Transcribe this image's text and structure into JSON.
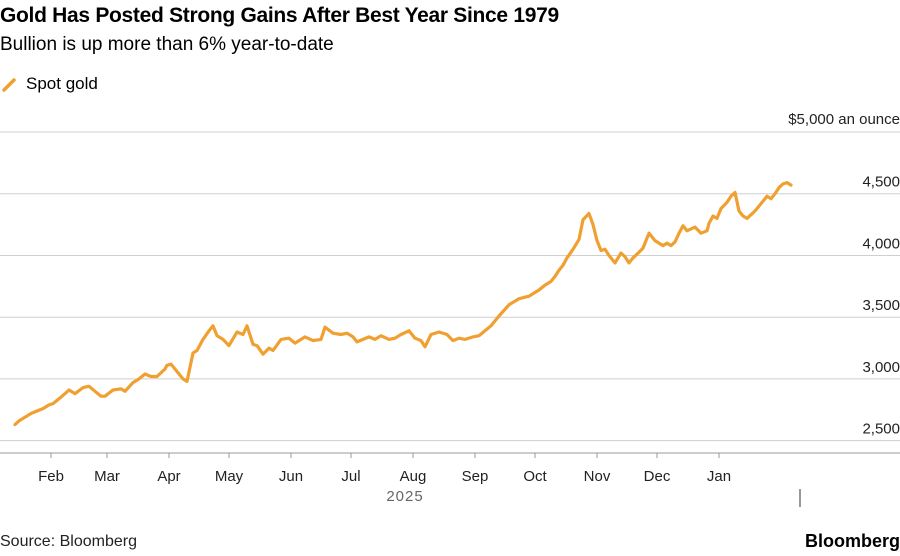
{
  "chart_data": {
    "type": "line",
    "title": "Gold Has Posted Strong Gains After Best Year Since 1979",
    "subtitle": "Bullion is up more than 6% year-to-date",
    "unit_label": "$5,000 an ounce",
    "year_label": "2025",
    "xlabel": "",
    "ylabel": "",
    "ylim": [
      2400,
      5000
    ],
    "y_ticks": [
      {
        "value": 2500,
        "label": "2,500"
      },
      {
        "value": 3000,
        "label": "3,000"
      },
      {
        "value": 3500,
        "label": "3,500"
      },
      {
        "value": 4000,
        "label": "4,000"
      },
      {
        "value": 4500,
        "label": "4,500"
      }
    ],
    "x_ticks": [
      {
        "day": 31,
        "label": "Feb"
      },
      {
        "day": 59,
        "label": "Mar"
      },
      {
        "day": 90,
        "label": "Apr"
      },
      {
        "day": 120,
        "label": "May"
      },
      {
        "day": 151,
        "label": "Jun"
      },
      {
        "day": 181,
        "label": "Jul"
      },
      {
        "day": 212,
        "label": "Aug"
      },
      {
        "day": 243,
        "label": "Sep"
      },
      {
        "day": 273,
        "label": "Oct"
      },
      {
        "day": 304,
        "label": "Nov"
      },
      {
        "day": 334,
        "label": "Dec"
      },
      {
        "day": 365,
        "label": "Jan"
      }
    ],
    "legend": [
      {
        "name": "Spot gold",
        "color": "#f0a030"
      }
    ],
    "series": [
      {
        "name": "Spot gold",
        "color": "#f0a030",
        "x": [
          13,
          15,
          18,
          21,
          24,
          27,
          30,
          32,
          35,
          38,
          40,
          43,
          47,
          50,
          53,
          56,
          58,
          62,
          66,
          68,
          72,
          75,
          78,
          81,
          84,
          88,
          89,
          91,
          94,
          97,
          99,
          102,
          104,
          107,
          110,
          112,
          114,
          117,
          120,
          124,
          127,
          129,
          132,
          134,
          137,
          140,
          142,
          146,
          150,
          153,
          156,
          158,
          162,
          166,
          168,
          172,
          176,
          179,
          182,
          184,
          187,
          190,
          193,
          196,
          200,
          203,
          206,
          210,
          213,
          216,
          218,
          221,
          225,
          229,
          232,
          235,
          238,
          242,
          245,
          248,
          251,
          255,
          260,
          265,
          270,
          275,
          278,
          281,
          283,
          285,
          287,
          289,
          292,
          295,
          297,
          300,
          302,
          304,
          306,
          308,
          310,
          313,
          316,
          318,
          320,
          322,
          324,
          327,
          330,
          333,
          337,
          339,
          341,
          343,
          345,
          347,
          349,
          353,
          356,
          359,
          360,
          362,
          364,
          366,
          369,
          371,
          373,
          375,
          377
        ],
        "values": [
          2630,
          2660,
          2690,
          2720,
          2740,
          2760,
          2790,
          2800,
          2840,
          2880,
          2910,
          2880,
          2930,
          2940,
          2900,
          2860,
          2860,
          2910,
          2920,
          2900,
          2970,
          3000,
          3040,
          3020,
          3020,
          3080,
          3110,
          3120,
          3060,
          3000,
          2980,
          3210,
          3230,
          3320,
          3390,
          3430,
          3350,
          3320,
          3270,
          3380,
          3360,
          3430,
          3280,
          3270,
          3200,
          3250,
          3230,
          3320,
          3330,
          3290,
          3320,
          3340,
          3310,
          3320,
          3420,
          3370,
          3360,
          3370,
          3340,
          3300,
          3320,
          3340,
          3320,
          3350,
          3320,
          3330,
          3360,
          3390,
          3330,
          3310,
          3260,
          3360,
          3380,
          3360,
          3310,
          3330,
          3320,
          3340,
          3350,
          3390,
          3430,
          3510,
          3600,
          3650,
          3670,
          3720,
          3760,
          3790,
          3830,
          3880,
          3920,
          3980,
          4050,
          4130,
          4290,
          4340,
          4250,
          4120,
          4040,
          4050,
          4000,
          3940,
          4020,
          3990,
          3940,
          3980,
          4010,
          4060,
          4180,
          4120,
          4080,
          4100,
          4080,
          4110,
          4180,
          4240,
          4200,
          4230,
          4180,
          4200,
          4260,
          4320,
          4300,
          4380,
          4430,
          4480,
          4510,
          4360,
          4320
        ],
        "tail_x": [
          377,
          379,
          381,
          383,
          386,
          389,
          391,
          393,
          395,
          397,
          399,
          401
        ],
        "tail_values": [
          4320,
          4300,
          4330,
          4360,
          4420,
          4480,
          4460,
          4500,
          4550,
          4580,
          4590,
          4570
        ]
      }
    ]
  },
  "footer": {
    "source": "Source: Bloomberg",
    "brand": "Bloomberg"
  }
}
